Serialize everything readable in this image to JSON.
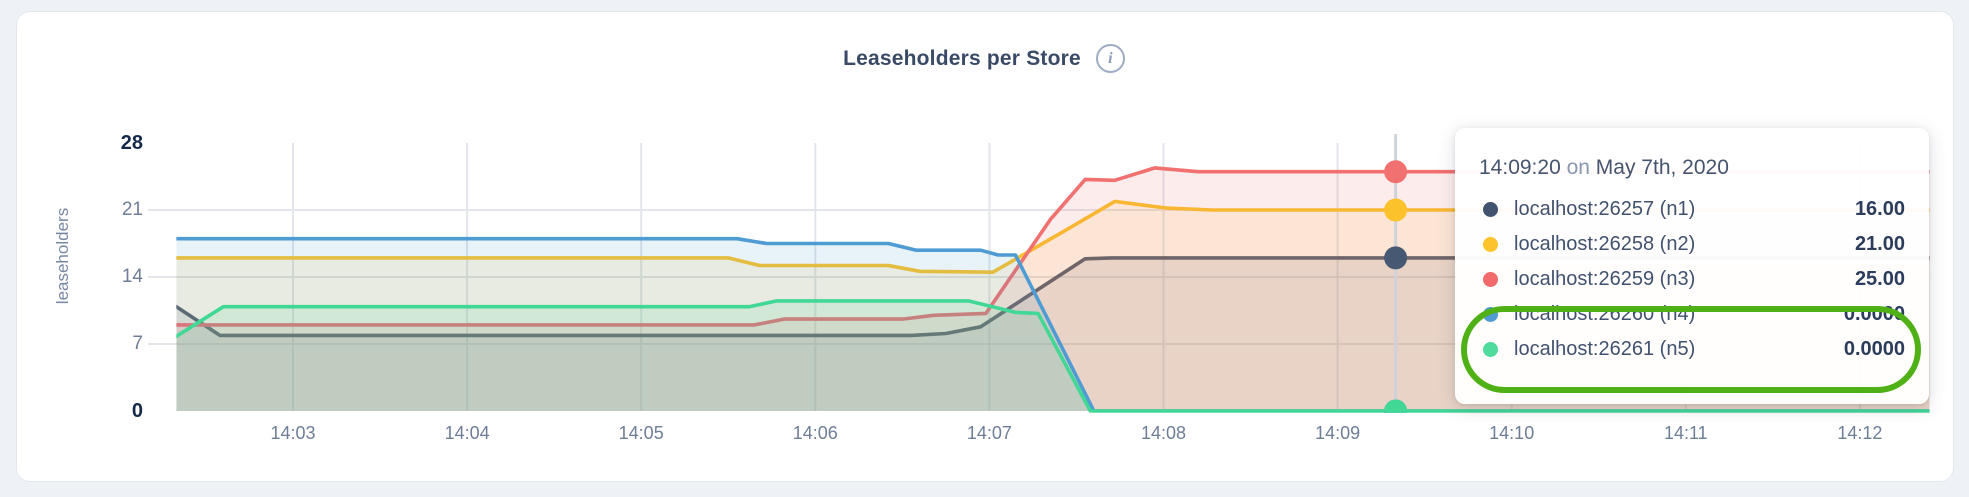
{
  "header": {
    "title": "Leaseholders per Store",
    "info_icon_glyph": "i"
  },
  "chart_data": {
    "type": "area",
    "title": "Leaseholders per Store",
    "xlabel": "",
    "ylabel": "leaseholders",
    "ylim": [
      0,
      28
    ],
    "grid": "on",
    "legend_position": "tooltip",
    "fill_opacity": 0.13,
    "yticks": [
      {
        "v": 28,
        "label": "28",
        "bold": true
      },
      {
        "v": 21,
        "label": "21",
        "bold": false
      },
      {
        "v": 14,
        "label": "14",
        "bold": false
      },
      {
        "v": 7,
        "label": "7",
        "bold": false
      },
      {
        "v": 0,
        "label": "0",
        "bold": true
      }
    ],
    "grid_yvalues": [
      7,
      14,
      21
    ],
    "xticks": [
      {
        "t": 3,
        "label": "14:03"
      },
      {
        "t": 4,
        "label": "14:04"
      },
      {
        "t": 5,
        "label": "14:05"
      },
      {
        "t": 6,
        "label": "14:06"
      },
      {
        "t": 7,
        "label": "14:07"
      },
      {
        "t": 8,
        "label": "14:08"
      },
      {
        "t": 9,
        "label": "14:09"
      },
      {
        "t": 10,
        "label": "14:10"
      },
      {
        "t": 11,
        "label": "14:11"
      },
      {
        "t": 12,
        "label": "14:12"
      }
    ],
    "x_domain_minutes_after_1400": [
      2.33,
      12.4
    ],
    "series": [
      {
        "name": "localhost:26257 (n1)",
        "color": "#475872",
        "points": [
          [
            2.33,
            10.9
          ],
          [
            2.58,
            7.9
          ],
          [
            6.55,
            7.9
          ],
          [
            6.75,
            8.1
          ],
          [
            6.95,
            8.8
          ],
          [
            7.55,
            15.9
          ],
          [
            7.7,
            16
          ],
          [
            12.4,
            16
          ]
        ]
      },
      {
        "name": "localhost:26258 (n2)",
        "color": "#FBC22B",
        "points": [
          [
            2.33,
            16
          ],
          [
            5.5,
            16
          ],
          [
            5.68,
            15.2
          ],
          [
            6.42,
            15.2
          ],
          [
            6.6,
            14.6
          ],
          [
            7.02,
            14.5
          ],
          [
            7.45,
            19
          ],
          [
            7.72,
            21.9
          ],
          [
            8.02,
            21.2
          ],
          [
            8.28,
            21
          ],
          [
            12.4,
            21
          ]
        ]
      },
      {
        "name": "localhost:26259 (n3)",
        "color": "#F17070",
        "points": [
          [
            2.33,
            9
          ],
          [
            5.65,
            9
          ],
          [
            5.82,
            9.6
          ],
          [
            6.5,
            9.6
          ],
          [
            6.68,
            10
          ],
          [
            6.98,
            10.2
          ],
          [
            7.35,
            20
          ],
          [
            7.55,
            24.2
          ],
          [
            7.72,
            24.1
          ],
          [
            7.95,
            25.4
          ],
          [
            8.2,
            25
          ],
          [
            12.4,
            25
          ]
        ]
      },
      {
        "name": "localhost:26260 (n4)",
        "color": "#4F9BD3",
        "points": [
          [
            2.33,
            18
          ],
          [
            5.55,
            18
          ],
          [
            5.72,
            17.5
          ],
          [
            6.42,
            17.5
          ],
          [
            6.58,
            16.8
          ],
          [
            6.95,
            16.8
          ],
          [
            7.05,
            16.3
          ],
          [
            7.15,
            16.3
          ],
          [
            7.6,
            0
          ],
          [
            12.4,
            0
          ]
        ]
      },
      {
        "name": "localhost:26261 (n5)",
        "color": "#41D795",
        "points": [
          [
            2.33,
            7.8
          ],
          [
            2.6,
            10.9
          ],
          [
            5.62,
            10.9
          ],
          [
            5.78,
            11.5
          ],
          [
            6.88,
            11.5
          ],
          [
            7.15,
            10.3
          ],
          [
            7.28,
            10.2
          ],
          [
            7.58,
            0
          ],
          [
            12.4,
            0
          ]
        ]
      }
    ],
    "hover": {
      "t": 9.3333,
      "time_label": "14:09:20",
      "values": [
        16,
        21,
        25,
        0,
        0
      ],
      "line_color": "#CFD3D9"
    }
  },
  "tooltip": {
    "time": "14:09:20",
    "conjunction": "on",
    "date": "May 7th, 2020",
    "rows": [
      {
        "label": "localhost:26257 (n1)",
        "value": "16.00",
        "color": "#41536F",
        "highlighted": false
      },
      {
        "label": "localhost:26258 (n2)",
        "value": "21.00",
        "color": "#FCC42A",
        "highlighted": false
      },
      {
        "label": "localhost:26259 (n3)",
        "value": "25.00",
        "color": "#F16B6B",
        "highlighted": false
      },
      {
        "label": "localhost:26260 (n4)",
        "value": "0.0000",
        "color": "#4F9BD3",
        "highlighted": true
      },
      {
        "label": "localhost:26261 (n5)",
        "value": "0.0000",
        "color": "#4EDB9B",
        "highlighted": true
      }
    ],
    "annotation_color": "#4FB116"
  }
}
